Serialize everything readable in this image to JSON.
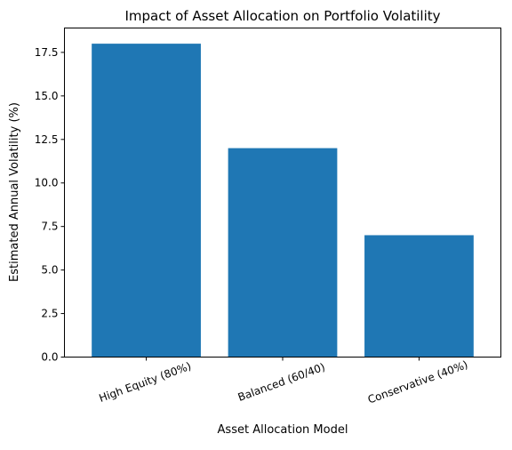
{
  "chart_data": {
    "type": "bar",
    "title": "Impact of Asset Allocation on Portfolio Volatility",
    "xlabel": "Asset Allocation Model",
    "ylabel": "Estimated Annual Volatility (%)",
    "categories": [
      "High Equity (80%)",
      "Balanced (60/40)",
      "Conservative (40%)"
    ],
    "values": [
      18.0,
      12.0,
      7.0
    ],
    "ylim": [
      0,
      18.9
    ],
    "yticks": [
      0.0,
      2.5,
      5.0,
      7.5,
      10.0,
      12.5,
      15.0,
      17.5
    ],
    "ytick_labels": [
      "0.0",
      "2.5",
      "5.0",
      "7.5",
      "10.0",
      "12.5",
      "15.0",
      "17.5"
    ],
    "bar_color": "#1f77b4",
    "grid": false,
    "xtick_rotation_deg": -20
  }
}
